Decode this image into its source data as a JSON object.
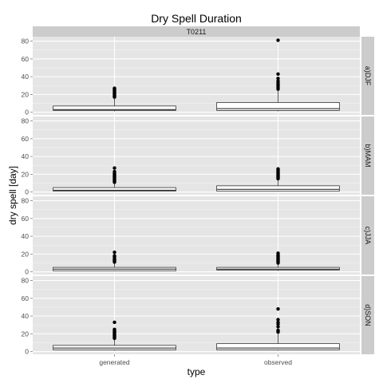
{
  "chart_data": {
    "type": "boxplot",
    "title": "Dry Spell Duration",
    "column_strip": "T0211",
    "xlabel": "type",
    "ylabel": "dry spell [day]",
    "categories": [
      "generated",
      "observed"
    ],
    "ylim": [
      -3,
      85
    ],
    "yticks": [
      0,
      20,
      40,
      60,
      80
    ],
    "grid": true,
    "panels": [
      {
        "label": "a)DJF",
        "boxes": [
          {
            "category": "generated",
            "min": 1,
            "q1": 2,
            "median": 3,
            "q3": 7,
            "max": 15,
            "outliers": [
              17,
              18,
              19,
              20,
              21,
              22,
              23,
              24,
              25,
              26,
              27
            ]
          },
          {
            "category": "observed",
            "min": 1,
            "q1": 2,
            "median": 4,
            "q3": 11,
            "max": 24,
            "outliers": [
              26,
              28,
              30,
              31,
              33,
              35,
              38,
              43,
              81
            ]
          }
        ]
      },
      {
        "label": "b)MAM",
        "boxes": [
          {
            "category": "generated",
            "min": 1,
            "q1": 1,
            "median": 2,
            "q3": 5,
            "max": 10,
            "outliers": [
              11,
              12,
              13,
              14,
              15,
              16,
              17,
              18,
              19,
              20,
              21,
              23,
              27
            ]
          },
          {
            "category": "observed",
            "min": 1,
            "q1": 1,
            "median": 3,
            "q3": 7,
            "max": 14,
            "outliers": [
              15,
              16,
              17,
              18,
              19,
              20,
              21,
              22,
              23,
              24,
              25,
              26
            ]
          }
        ]
      },
      {
        "label": "c)JJA",
        "boxes": [
          {
            "category": "generated",
            "min": 1,
            "q1": 1,
            "median": 3,
            "q3": 5,
            "max": 10,
            "outliers": [
              11,
              12,
              13,
              14,
              15,
              17,
              18,
              22
            ]
          },
          {
            "category": "observed",
            "min": 1,
            "q1": 2,
            "median": 3,
            "q3": 5,
            "max": 9,
            "outliers": [
              10,
              11,
              12,
              13,
              14,
              15,
              16,
              17,
              18,
              19,
              21
            ]
          }
        ]
      },
      {
        "label": "d)SON",
        "boxes": [
          {
            "category": "generated",
            "min": 1,
            "q1": 2,
            "median": 4,
            "q3": 7,
            "max": 14,
            "outliers": [
              15,
              16,
              17,
              18,
              19,
              20,
              21,
              22,
              23,
              24,
              25,
              33
            ]
          },
          {
            "category": "observed",
            "min": 1,
            "q1": 2,
            "median": 4,
            "q3": 9,
            "max": 20,
            "outliers": [
              22,
              23,
              24,
              28,
              31,
              33,
              36,
              48
            ]
          }
        ]
      }
    ],
    "colors": {
      "panel_bg": "#e5e5e5",
      "grid_major": "#ffffff",
      "grid_minor": "#f2f2f2",
      "strip_bg": "#cccccc",
      "box_fill": "#ffffff",
      "box_line": "#333333",
      "point": "#000000"
    }
  }
}
